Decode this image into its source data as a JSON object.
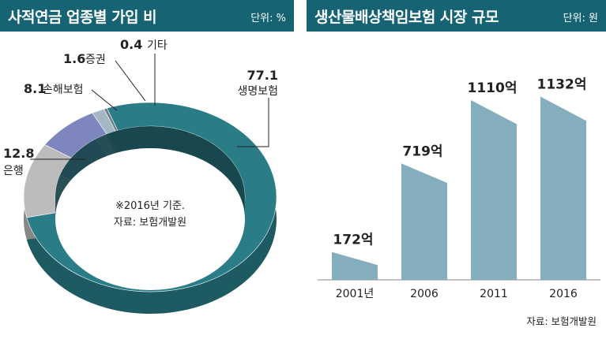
{
  "left_panel": {
    "title": "사적연금 업종별 가입 비",
    "unit": "단위: %",
    "note_line1": "※2016년 기준.",
    "note_line2": "자료: 보험개발원"
  },
  "right_panel": {
    "title": "생산물배상책임보험 시장 규모",
    "unit": "단위: 원",
    "source": "자료: 보험개발원"
  },
  "colors": {
    "header": "#156373",
    "life": "#2a7d87",
    "bank": "#bcbcbc",
    "nonlife": "#7d86bd",
    "securities": "#a3b8c4",
    "other": "#6f7f88",
    "bar": "#84aebd"
  },
  "chart_data": [
    {
      "type": "pie",
      "title": "사적연금 업종별 가입 비",
      "unit": "단위: %",
      "slices": [
        {
          "value": "77.1",
          "label": "생명보험"
        },
        {
          "value": "12.8",
          "label": "은행"
        },
        {
          "value": "8.1",
          "label": "손해보험"
        },
        {
          "value": "1.6",
          "label": "증권"
        },
        {
          "value": "0.4",
          "label": "기타"
        }
      ]
    },
    {
      "type": "bar",
      "title": "생산물배상책임보험 시장 규모",
      "unit": "단위: 원",
      "categories": [
        "2001년",
        "2006",
        "2011",
        "2016"
      ],
      "values": [
        172,
        719,
        1110,
        1132
      ],
      "value_labels": [
        "172억",
        "719억",
        "1110억",
        "1132억"
      ],
      "ylim": [
        0,
        1300
      ]
    }
  ]
}
